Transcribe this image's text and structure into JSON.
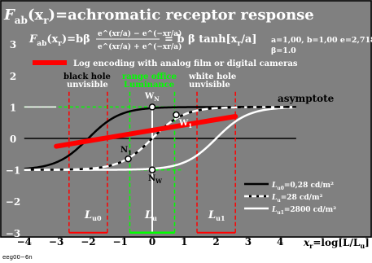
{
  "title": "F",
  "title_sub": "ab",
  "title_rest": "(x",
  "title_rsub": "r",
  "title_tail": ")=achromatic receptor response",
  "formula": {
    "lhs_F": "F",
    "lhs_sub": "ab",
    "lhs_x": "(x",
    "lhs_xsub": "r",
    "lhs_tail": ")=bβ",
    "numerator": "e^(xr/a) − e^(−xr/a)",
    "denominator": "e^(xr/a) + e^(−xr/a)",
    "rhs": "= b β tanh[x",
    "rhs_sub": "r",
    "rhs_tail": "/a]"
  },
  "params_line1": "a=1,00, b=1,00 e=2,7182",
  "params_line2": "β=1.0",
  "red_legend": "Log encoding with analog film or digital cameras",
  "annotations": {
    "black_hole_1": "black hole",
    "black_hole_2": "unvisible",
    "range_office_1": "range office",
    "range_office_2": "Luminance",
    "white_hole_1": "white hole",
    "white_hole_2": "unvisible",
    "asymptote": "asymptote",
    "WN": "W",
    "WN_sub": "N",
    "W1": "W",
    "W1_sub": "1",
    "N1": "N",
    "N1_sub": "1",
    "NW": "N",
    "NW_sub": "W",
    "Lu0": "L",
    "Lu0_sub": "u0",
    "Lu": "L",
    "Lu_sub": "u",
    "Lu1": "L",
    "Lu1_sub": "u1"
  },
  "legend": [
    {
      "L": "L",
      "sub": "u0",
      "text": "=0,28 cd/m²",
      "style": "black-solid"
    },
    {
      "L": "L",
      "sub": "u",
      "text": "=28 cd/m²",
      "style": "white-dashed"
    },
    {
      "L": "L",
      "sub": "u1",
      "text": "=2800 cd/m²",
      "style": "white-solid"
    }
  ],
  "xaxis_label": "x",
  "xaxis_label_sub": "r",
  "xaxis_label_tail": "=log[L/L",
  "xaxis_label_tail_sub": "u",
  "xaxis_label_end": "]",
  "footer": "eeg00−6n",
  "chart_data": {
    "type": "line",
    "x_ticks": [
      "−4",
      "−3",
      "−2",
      "−1",
      "0",
      "1",
      "2",
      "3",
      "4"
    ],
    "y_ticks": [
      "−3",
      "−2",
      "−1",
      "0",
      "1",
      "2",
      "3"
    ],
    "xlim": [
      -4,
      4.6
    ],
    "ylim": [
      -3,
      4
    ],
    "grid": false,
    "series": [
      {
        "name": "L_u0=0,28 cd/m²",
        "function": "tanh(x+2)",
        "color": "#000000",
        "dash": "solid"
      },
      {
        "name": "L_u=28 cd/m²",
        "function": "tanh(x)",
        "color": "#ffffff",
        "dash": "dashed"
      },
      {
        "name": "L_u1=2800 cd/m²",
        "function": "tanh(x-2)",
        "color": "#ffffff",
        "dash": "solid"
      },
      {
        "name": "Log encoding with analog film or digital cameras",
        "x": [
          -3,
          2.6
        ],
        "y": [
          -0.25,
          0.7
        ],
        "color": "#ff0000"
      }
    ],
    "reference_lines": {
      "y_levels": [
        1,
        -1
      ],
      "red_vertical_x": [
        -2.6,
        -1.4,
        1.4,
        2.6
      ],
      "green_vertical_x": [
        -0.7,
        0.7
      ],
      "asymptote_y": 1
    },
    "colors": {
      "background": "#808080",
      "red": "#ff0000",
      "green": "#00ff00"
    }
  }
}
